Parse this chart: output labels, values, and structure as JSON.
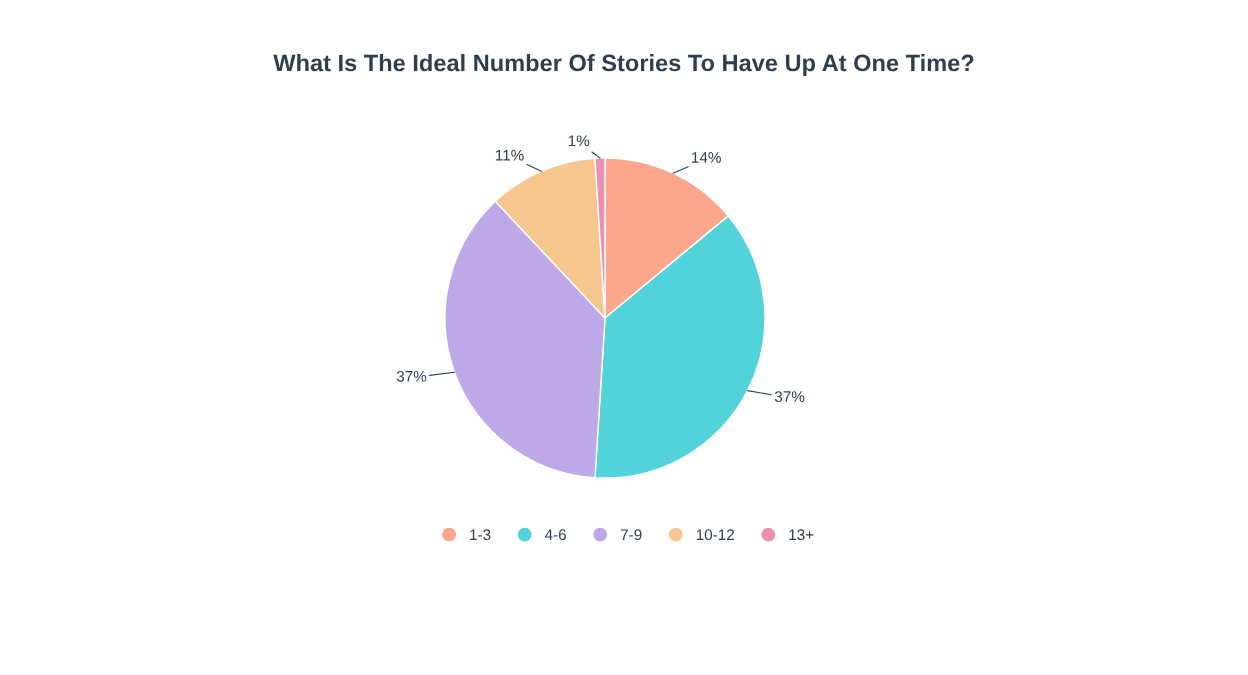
{
  "chart_data": {
    "type": "pie",
    "title": "What Is The Ideal Number Of Stories To Have Up At One Time?",
    "categories": [
      "1-3",
      "4-6",
      "7-9",
      "10-12",
      "13+"
    ],
    "values": [
      14,
      37,
      37,
      11,
      1
    ],
    "colors": [
      "#fca68c",
      "#52d3d9",
      "#bea8e7",
      "#f5c78f",
      "#ea90b2"
    ],
    "value_labels": [
      "14%",
      "37%",
      "37%",
      "11%",
      "1%"
    ],
    "legend": "bottom"
  }
}
